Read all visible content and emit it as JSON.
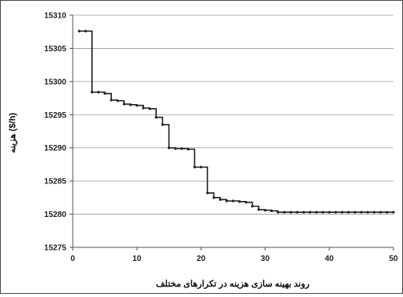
{
  "chart_data": {
    "type": "line",
    "title": "",
    "xlabel": "روند بهینه سازی هزینه در تکرارهای مختلف",
    "ylabel": "هزینه ($/h)",
    "xlim": [
      0,
      50
    ],
    "ylim": [
      15275,
      15310
    ],
    "x_ticks": [
      0,
      10,
      20,
      30,
      40,
      50
    ],
    "x_tick_labels": [
      "0",
      "10",
      "20",
      "30",
      "40",
      "50"
    ],
    "y_ticks": [
      15275,
      15280,
      15285,
      15290,
      15295,
      15300,
      15305,
      15310
    ],
    "y_tick_labels": [
      "15275",
      "15280",
      "15285",
      "15290",
      "15295",
      "15300",
      "15305",
      "15310"
    ],
    "grid": "horizontal",
    "legend": "none",
    "step": true,
    "series": [
      {
        "color": "#222222",
        "x": [
          1,
          2,
          3,
          4,
          5,
          6,
          7,
          8,
          9,
          10,
          11,
          12,
          13,
          14,
          15,
          16,
          17,
          18,
          19,
          20,
          21,
          22,
          23,
          24,
          25,
          26,
          27,
          28,
          29,
          30,
          31,
          32,
          33,
          34,
          35,
          36,
          37,
          38,
          39,
          40,
          41,
          42,
          43,
          44,
          45,
          46,
          47,
          48,
          49,
          50
        ],
        "y": [
          15307.6,
          15307.6,
          15298.4,
          15298.4,
          15298.2,
          15297.2,
          15297.1,
          15296.6,
          15296.5,
          15296.4,
          15296.0,
          15295.9,
          15294.6,
          15293.5,
          15290.0,
          15289.9,
          15289.9,
          15289.8,
          15287.1,
          15287.1,
          15283.2,
          15282.5,
          15282.2,
          15282.0,
          15282.0,
          15281.9,
          15281.8,
          15281.2,
          15280.7,
          15280.6,
          15280.5,
          15280.3,
          15280.3,
          15280.3,
          15280.3,
          15280.3,
          15280.3,
          15280.3,
          15280.3,
          15280.3,
          15280.3,
          15280.3,
          15280.3,
          15280.3,
          15280.3,
          15280.3,
          15280.3,
          15280.3,
          15280.3,
          15280.3
        ]
      }
    ]
  }
}
